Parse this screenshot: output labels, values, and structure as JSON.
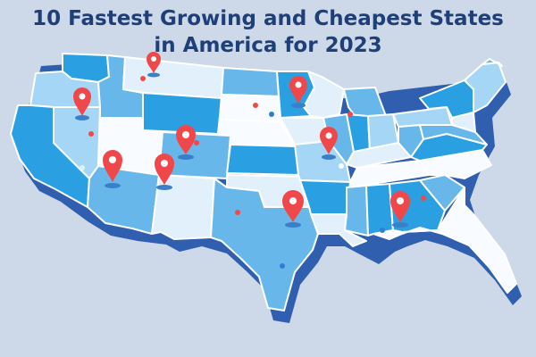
{
  "title": {
    "line1": "10 Fastest Growing and Cheapest States",
    "line2": "in America for 2023"
  },
  "colors": {
    "background": "#cdd9e8",
    "title": "#1f3f78",
    "map_shadow": "#2f5fae",
    "state_dark": "#2aa0e3",
    "state_mid": "#67b7ea",
    "state_light": "#a6d6f5",
    "state_pale": "#e1f0fb",
    "state_white": "#f8fbff",
    "state_border": "#ffffff",
    "pin": "#f0484a",
    "pin_shadow": "#3a7fc8",
    "dot_red": "#ef4a4a",
    "dot_blue": "#2f7fd0"
  },
  "pin_count": 10
}
